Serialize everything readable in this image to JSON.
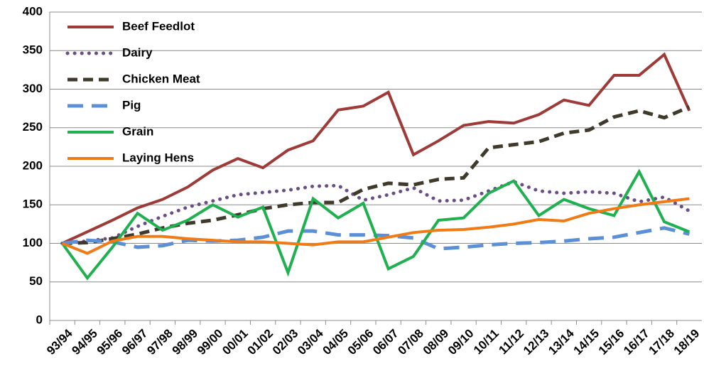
{
  "chart_data": {
    "type": "line",
    "categories": [
      "93/94",
      "94/95",
      "95/96",
      "96/97",
      "97/98",
      "98/99",
      "99/00",
      "00/01",
      "01/02",
      "02/03",
      "03/04",
      "04/05",
      "05/06",
      "06/07",
      "07/08",
      "08/09",
      "09/10",
      "10/11",
      "11/12",
      "12/13",
      "13/14",
      "14/15",
      "15/16",
      "16/17",
      "17/18",
      "18/19"
    ],
    "series": [
      {
        "name": "Beef Feedlot",
        "color": "#9e3a38",
        "style": "solid",
        "values": [
          100,
          115,
          130,
          146,
          157,
          173,
          195,
          210,
          198,
          221,
          233,
          273,
          278,
          296,
          215,
          233,
          253,
          258,
          256,
          267,
          286,
          279,
          318,
          318,
          345,
          272
        ]
      },
      {
        "name": "Dairy",
        "color": "#6a4f86",
        "style": "dotted",
        "values": [
          100,
          103,
          107,
          122,
          135,
          147,
          155,
          163,
          166,
          169,
          174,
          175,
          156,
          163,
          172,
          155,
          156,
          168,
          180,
          168,
          165,
          167,
          165,
          154,
          160,
          142
        ]
      },
      {
        "name": "Chicken Meat",
        "color": "#3f3a2c",
        "style": "dashed",
        "values": [
          100,
          101,
          106,
          112,
          120,
          126,
          130,
          137,
          145,
          150,
          153,
          153,
          170,
          178,
          176,
          183,
          185,
          224,
          228,
          232,
          243,
          247,
          264,
          272,
          263,
          277
        ]
      },
      {
        "name": "Pig",
        "color": "#5b8fd6",
        "style": "longdash",
        "values": [
          100,
          104,
          102,
          95,
          97,
          104,
          103,
          104,
          108,
          116,
          116,
          111,
          111,
          110,
          107,
          93,
          95,
          98,
          100,
          101,
          103,
          106,
          108,
          114,
          120,
          112
        ]
      },
      {
        "name": "Grain",
        "color": "#1fb04f",
        "style": "solid",
        "values": [
          100,
          55,
          95,
          139,
          117,
          130,
          150,
          134,
          147,
          62,
          158,
          133,
          152,
          67,
          83,
          130,
          133,
          165,
          181,
          136,
          157,
          145,
          136,
          193,
          128,
          115
        ]
      },
      {
        "name": "Laying Hens",
        "color": "#f07b16",
        "style": "solid",
        "values": [
          100,
          87,
          103,
          109,
          109,
          106,
          104,
          102,
          102,
          100,
          98,
          102,
          102,
          108,
          114,
          117,
          118,
          121,
          125,
          131,
          129,
          139,
          145,
          150,
          154,
          158
        ]
      }
    ],
    "ylim": [
      0,
      400
    ],
    "yticks": [
      0,
      50,
      100,
      150,
      200,
      250,
      300,
      350,
      400
    ],
    "grid": true,
    "legend": "top-left"
  }
}
